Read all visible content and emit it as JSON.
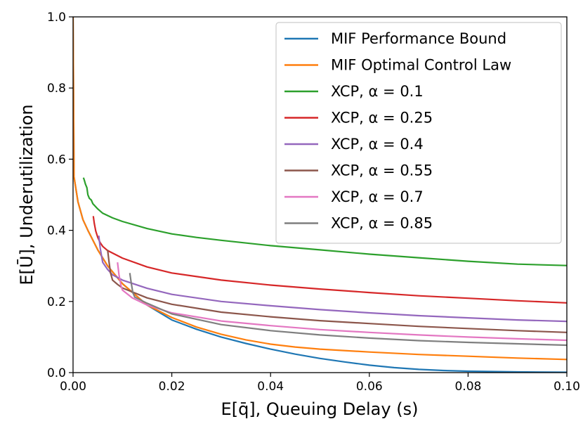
{
  "chart_data": {
    "type": "line",
    "title": "",
    "xlabel": "E[q̄], Queuing Delay (s)",
    "ylabel": "E[Ū], Underutilization",
    "xlim": [
      0.0,
      0.1
    ],
    "ylim": [
      0.0,
      1.0
    ],
    "xticks": [
      "0.00",
      "0.02",
      "0.04",
      "0.06",
      "0.08",
      "0.10"
    ],
    "yticks": [
      "0.0",
      "0.2",
      "0.4",
      "0.6",
      "0.8",
      "1.0"
    ],
    "grid": false,
    "legend_position": "top-right",
    "series": [
      {
        "name": "MIF Performance Bound",
        "color": "#1f77b4",
        "points": [
          [
            0.0,
            1.0
          ],
          [
            0.0002,
            0.55
          ],
          [
            0.001,
            0.48
          ],
          [
            0.002,
            0.43
          ],
          [
            0.003,
            0.4
          ],
          [
            0.005,
            0.345
          ],
          [
            0.007,
            0.3
          ],
          [
            0.01,
            0.25
          ],
          [
            0.015,
            0.19
          ],
          [
            0.02,
            0.148
          ],
          [
            0.025,
            0.122
          ],
          [
            0.03,
            0.1
          ],
          [
            0.035,
            0.082
          ],
          [
            0.04,
            0.066
          ],
          [
            0.045,
            0.052
          ],
          [
            0.05,
            0.04
          ],
          [
            0.055,
            0.03
          ],
          [
            0.06,
            0.021
          ],
          [
            0.065,
            0.014
          ],
          [
            0.07,
            0.009
          ],
          [
            0.075,
            0.006
          ],
          [
            0.08,
            0.004
          ],
          [
            0.09,
            0.002
          ],
          [
            0.1,
            0.001
          ]
        ]
      },
      {
        "name": "MIF Optimal Control Law",
        "color": "#ff7f0e",
        "points": [
          [
            0.0,
            1.0
          ],
          [
            0.0002,
            0.55
          ],
          [
            0.001,
            0.48
          ],
          [
            0.002,
            0.43
          ],
          [
            0.003,
            0.4
          ],
          [
            0.005,
            0.345
          ],
          [
            0.007,
            0.3
          ],
          [
            0.01,
            0.25
          ],
          [
            0.015,
            0.19
          ],
          [
            0.02,
            0.155
          ],
          [
            0.025,
            0.128
          ],
          [
            0.03,
            0.108
          ],
          [
            0.035,
            0.092
          ],
          [
            0.04,
            0.08
          ],
          [
            0.045,
            0.072
          ],
          [
            0.05,
            0.066
          ],
          [
            0.06,
            0.058
          ],
          [
            0.07,
            0.051
          ],
          [
            0.08,
            0.046
          ],
          [
            0.09,
            0.041
          ],
          [
            0.1,
            0.037
          ]
        ]
      },
      {
        "name": "XCP, α = 0.1",
        "color": "#2ca02c",
        "points": [
          [
            0.0021,
            0.548
          ],
          [
            0.0023,
            0.54
          ],
          [
            0.0025,
            0.53
          ],
          [
            0.0028,
            0.52
          ],
          [
            0.003,
            0.5
          ],
          [
            0.0033,
            0.49
          ],
          [
            0.0037,
            0.485
          ],
          [
            0.004,
            0.475
          ],
          [
            0.005,
            0.46
          ],
          [
            0.006,
            0.448
          ],
          [
            0.008,
            0.435
          ],
          [
            0.01,
            0.425
          ],
          [
            0.015,
            0.405
          ],
          [
            0.02,
            0.39
          ],
          [
            0.025,
            0.38
          ],
          [
            0.03,
            0.372
          ],
          [
            0.04,
            0.357
          ],
          [
            0.05,
            0.345
          ],
          [
            0.06,
            0.333
          ],
          [
            0.07,
            0.323
          ],
          [
            0.08,
            0.313
          ],
          [
            0.09,
            0.305
          ],
          [
            0.1,
            0.301
          ]
        ]
      },
      {
        "name": "XCP, α = 0.25",
        "color": "#d62728",
        "points": [
          [
            0.0041,
            0.44
          ],
          [
            0.0043,
            0.42
          ],
          [
            0.0046,
            0.398
          ],
          [
            0.005,
            0.38
          ],
          [
            0.0055,
            0.365
          ],
          [
            0.006,
            0.355
          ],
          [
            0.007,
            0.343
          ],
          [
            0.01,
            0.322
          ],
          [
            0.015,
            0.297
          ],
          [
            0.02,
            0.28
          ],
          [
            0.03,
            0.26
          ],
          [
            0.04,
            0.246
          ],
          [
            0.05,
            0.235
          ],
          [
            0.06,
            0.225
          ],
          [
            0.07,
            0.216
          ],
          [
            0.08,
            0.209
          ],
          [
            0.09,
            0.202
          ],
          [
            0.1,
            0.196
          ]
        ]
      },
      {
        "name": "XCP, α = 0.4",
        "color": "#9467bd",
        "points": [
          [
            0.0052,
            0.385
          ],
          [
            0.0055,
            0.35
          ],
          [
            0.0058,
            0.325
          ],
          [
            0.006,
            0.31
          ],
          [
            0.007,
            0.29
          ],
          [
            0.008,
            0.275
          ],
          [
            0.01,
            0.26
          ],
          [
            0.015,
            0.237
          ],
          [
            0.02,
            0.22
          ],
          [
            0.03,
            0.2
          ],
          [
            0.04,
            0.188
          ],
          [
            0.05,
            0.177
          ],
          [
            0.06,
            0.168
          ],
          [
            0.07,
            0.16
          ],
          [
            0.08,
            0.154
          ],
          [
            0.09,
            0.148
          ],
          [
            0.1,
            0.144
          ]
        ]
      },
      {
        "name": "XCP, α = 0.55",
        "color": "#8c564b",
        "points": [
          [
            0.007,
            0.345
          ],
          [
            0.0073,
            0.31
          ],
          [
            0.0076,
            0.28
          ],
          [
            0.008,
            0.26
          ],
          [
            0.009,
            0.248
          ],
          [
            0.01,
            0.238
          ],
          [
            0.015,
            0.21
          ],
          [
            0.02,
            0.192
          ],
          [
            0.03,
            0.17
          ],
          [
            0.04,
            0.157
          ],
          [
            0.05,
            0.146
          ],
          [
            0.06,
            0.138
          ],
          [
            0.07,
            0.13
          ],
          [
            0.08,
            0.124
          ],
          [
            0.09,
            0.118
          ],
          [
            0.1,
            0.113
          ]
        ]
      },
      {
        "name": "XCP, α = 0.7",
        "color": "#e377c2",
        "points": [
          [
            0.009,
            0.31
          ],
          [
            0.0093,
            0.275
          ],
          [
            0.0097,
            0.245
          ],
          [
            0.01,
            0.232
          ],
          [
            0.012,
            0.21
          ],
          [
            0.015,
            0.19
          ],
          [
            0.02,
            0.168
          ],
          [
            0.03,
            0.145
          ],
          [
            0.04,
            0.132
          ],
          [
            0.05,
            0.121
          ],
          [
            0.06,
            0.113
          ],
          [
            0.07,
            0.106
          ],
          [
            0.08,
            0.1
          ],
          [
            0.09,
            0.095
          ],
          [
            0.1,
            0.091
          ]
        ]
      },
      {
        "name": "XCP, α = 0.85",
        "color": "#7f7f7f",
        "points": [
          [
            0.0115,
            0.28
          ],
          [
            0.0118,
            0.25
          ],
          [
            0.0121,
            0.225
          ],
          [
            0.0125,
            0.212
          ],
          [
            0.015,
            0.195
          ],
          [
            0.02,
            0.165
          ],
          [
            0.03,
            0.135
          ],
          [
            0.04,
            0.118
          ],
          [
            0.05,
            0.106
          ],
          [
            0.06,
            0.097
          ],
          [
            0.07,
            0.09
          ],
          [
            0.08,
            0.085
          ],
          [
            0.09,
            0.081
          ],
          [
            0.1,
            0.077
          ]
        ]
      }
    ]
  }
}
